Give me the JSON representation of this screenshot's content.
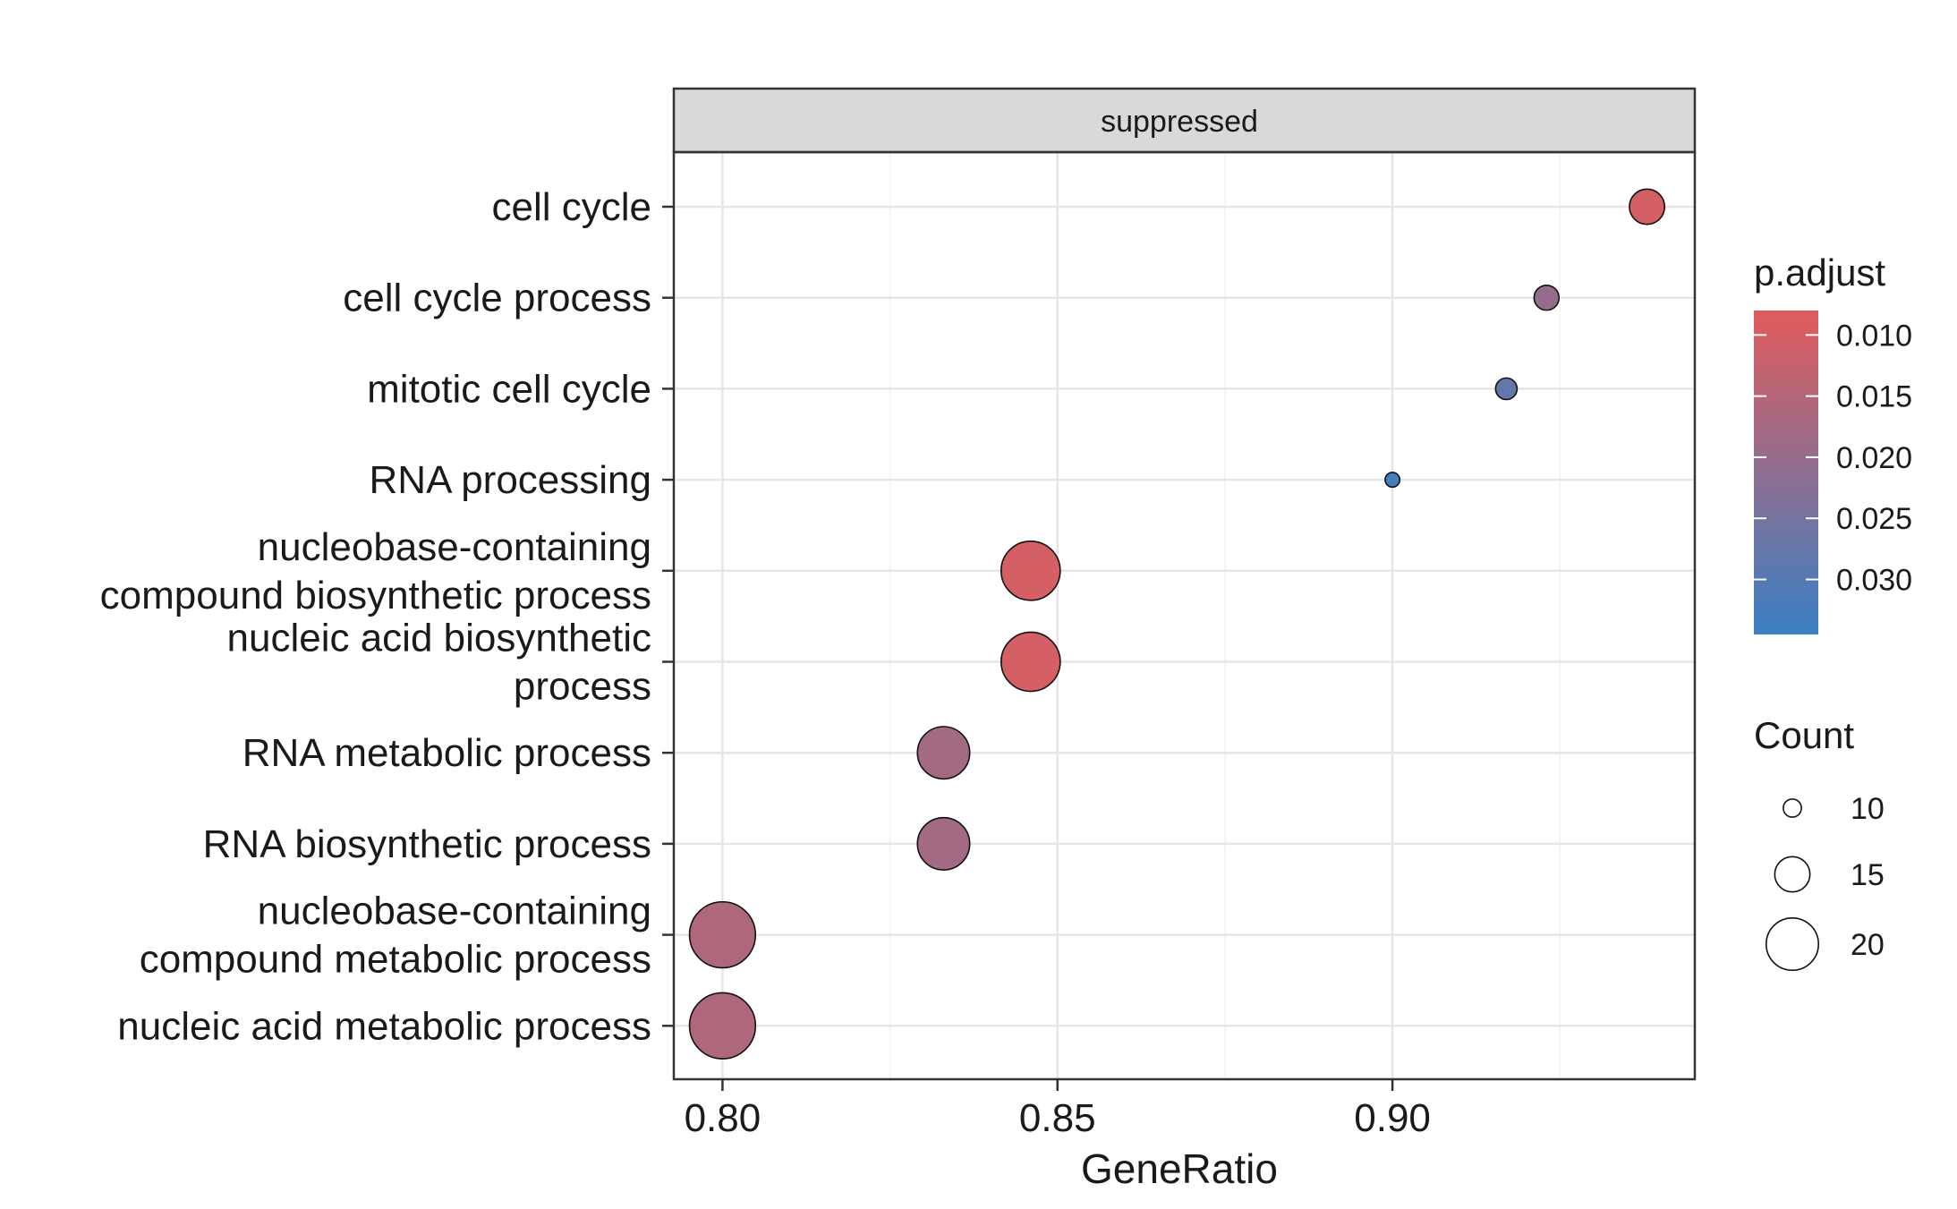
{
  "chart_data": {
    "type": "scatter",
    "panel": "suppressed",
    "xlabel": "GeneRatio",
    "ylabel": "",
    "xlim": [
      0.793,
      0.945
    ],
    "x_ticks": [
      "0.80",
      "0.85",
      "0.90"
    ],
    "x_tick_values": [
      0.8,
      0.85,
      0.9
    ],
    "grid": true,
    "categories": [
      "cell cycle",
      "cell cycle process",
      "mitotic cell cycle",
      "RNA processing",
      "nucleobase-containing compound biosynthetic process",
      "nucleic acid biosynthetic process",
      "RNA metabolic process",
      "RNA biosynthetic process",
      "nucleobase-containing compound metabolic process",
      "nucleic acid metabolic process"
    ],
    "category_lines": [
      [
        "cell cycle"
      ],
      [
        "cell cycle process"
      ],
      [
        "mitotic cell cycle"
      ],
      [
        "RNA processing"
      ],
      [
        "nucleobase-containing",
        "compound biosynthetic process"
      ],
      [
        "nucleic acid biosynthetic",
        "process"
      ],
      [
        "RNA metabolic process"
      ],
      [
        "RNA biosynthetic process"
      ],
      [
        "nucleobase-containing",
        "compound metabolic process"
      ],
      [
        "nucleic acid metabolic process"
      ]
    ],
    "points": [
      {
        "term": "cell cycle",
        "gene_ratio": 0.938,
        "count": 15,
        "p_adjust": 0.01
      },
      {
        "term": "cell cycle process",
        "gene_ratio": 0.923,
        "count": 12,
        "p_adjust": 0.02
      },
      {
        "term": "mitotic cell cycle",
        "gene_ratio": 0.917,
        "count": 11,
        "p_adjust": 0.028
      },
      {
        "term": "RNA processing",
        "gene_ratio": 0.9,
        "count": 9,
        "p_adjust": 0.033
      },
      {
        "term": "nucleobase-containing compound biosynthetic process",
        "gene_ratio": 0.846,
        "count": 22,
        "p_adjust": 0.01
      },
      {
        "term": "nucleic acid biosynthetic process",
        "gene_ratio": 0.846,
        "count": 22,
        "p_adjust": 0.01
      },
      {
        "term": "RNA metabolic process",
        "gene_ratio": 0.833,
        "count": 20,
        "p_adjust": 0.018
      },
      {
        "term": "RNA biosynthetic process",
        "gene_ratio": 0.833,
        "count": 20,
        "p_adjust": 0.018
      },
      {
        "term": "nucleobase-containing compound metabolic process",
        "gene_ratio": 0.8,
        "count": 24,
        "p_adjust": 0.016
      },
      {
        "term": "nucleic acid metabolic process",
        "gene_ratio": 0.8,
        "count": 24,
        "p_adjust": 0.016
      }
    ],
    "color_legend": {
      "title": "p.adjust",
      "labels": [
        "0.010",
        "0.015",
        "0.020",
        "0.025",
        "0.030"
      ],
      "values": [
        0.01,
        0.015,
        0.02,
        0.025,
        0.03
      ],
      "range": [
        0.008,
        0.0345
      ],
      "low_color": "#e15c5c",
      "high_color": "#3a80c4"
    },
    "size_legend": {
      "title": "Count",
      "labels": [
        "10",
        "15",
        "20"
      ],
      "values": [
        10,
        15,
        20
      ]
    }
  }
}
